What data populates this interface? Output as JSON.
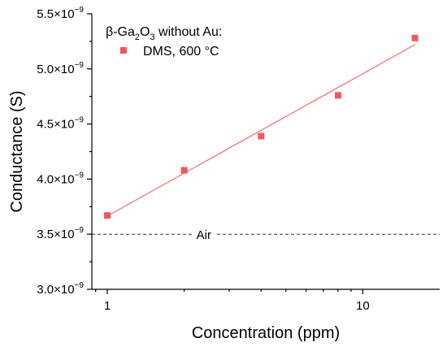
{
  "chart_data": {
    "type": "scatter",
    "title": "",
    "xlabel": "Concentration (ppm)",
    "ylabel": "Conductance (S)",
    "xscale": "log",
    "xlim": [
      0.87,
      20
    ],
    "ylim": [
      3e-09,
      5.5e-09
    ],
    "x_ticks": [
      1,
      10
    ],
    "x_tick_labels": [
      "1",
      "10"
    ],
    "y_ticks": [
      3e-09,
      3.5e-09,
      4e-09,
      4.5e-09,
      5e-09,
      5.5e-09
    ],
    "y_tick_labels": [
      {
        "mant": "3.0×10",
        "exp": "−9"
      },
      {
        "mant": "3.5×10",
        "exp": "−9"
      },
      {
        "mant": "4.0×10",
        "exp": "−9"
      },
      {
        "mant": "4.5×10",
        "exp": "−9"
      },
      {
        "mant": "5.0×10",
        "exp": "−9"
      },
      {
        "mant": "5.5×10",
        "exp": "−9"
      }
    ],
    "legend_title": {
      "pre": "β-Ga",
      "sub1": "2",
      "mid": "O",
      "sub2": "3",
      "post": " without Au:"
    },
    "legend_position": "top-left",
    "series": [
      {
        "name": "DMS, 600 °C",
        "color": "#f0585c",
        "marker": "square",
        "x": [
          1,
          2,
          4,
          8,
          16
        ],
        "y": [
          3.67e-09,
          4.08e-09,
          4.39e-09,
          4.76e-09,
          5.28e-09
        ]
      }
    ],
    "fit_line": {
      "color": "#f0585c",
      "x": [
        1,
        16
      ],
      "y": [
        3.665e-09,
        5.22e-09
      ]
    },
    "reference_line": {
      "label": "Air",
      "y": 3.5e-09,
      "style": "dashed",
      "color": "#333333"
    },
    "grid": false
  }
}
